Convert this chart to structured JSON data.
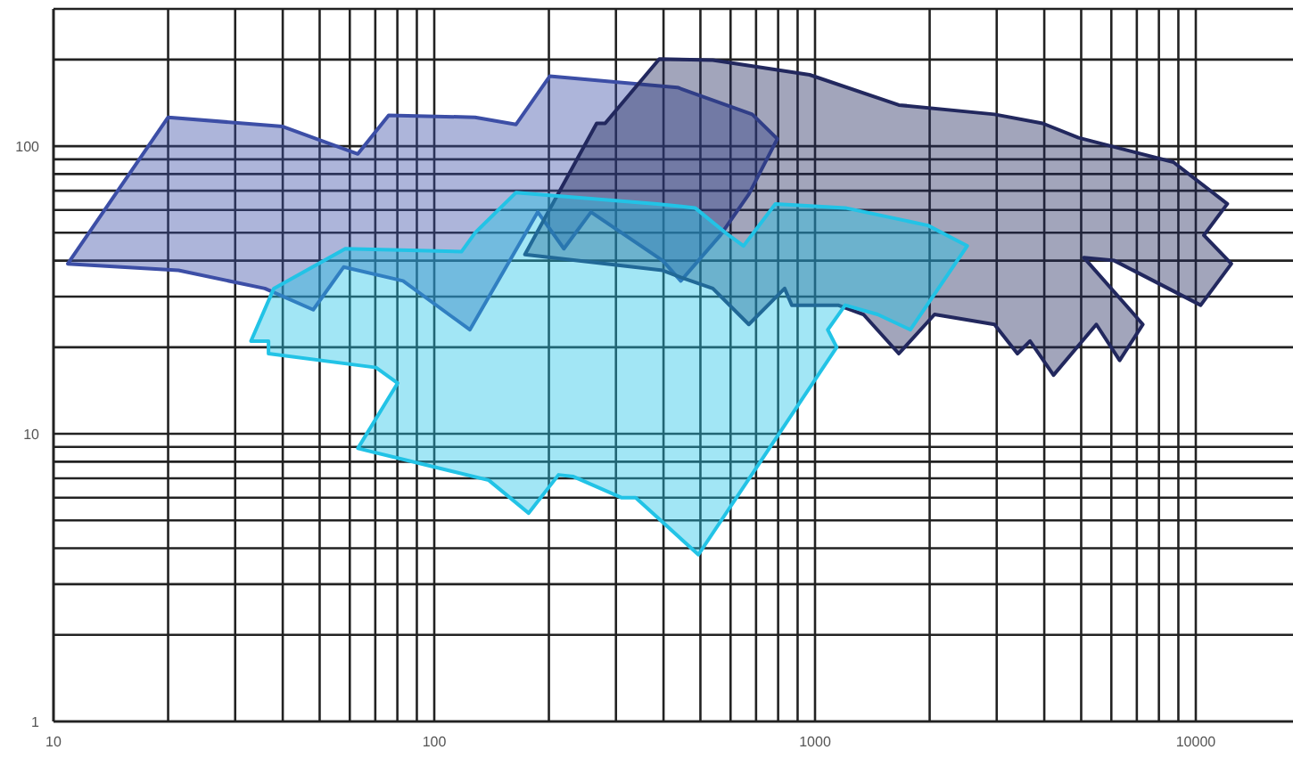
{
  "chart_data": {
    "type": "area",
    "log": "xy",
    "grid": true,
    "xlim": [
      10,
      18000
    ],
    "ylim": [
      1,
      300
    ],
    "xticks": [
      10,
      {
        "value": 20,
        "label": null
      },
      {
        "value": 30,
        "label": null
      },
      {
        "value": 40,
        "label": null
      },
      {
        "value": 50,
        "label": null
      },
      {
        "value": 60,
        "label": null
      },
      {
        "value": 70,
        "label": null
      },
      {
        "value": 80,
        "label": null
      },
      {
        "value": 90,
        "label": null
      },
      100,
      {
        "value": 200,
        "label": null
      },
      {
        "value": 300,
        "label": null
      },
      {
        "value": 400,
        "label": null
      },
      {
        "value": 500,
        "label": null
      },
      {
        "value": 600,
        "label": null
      },
      {
        "value": 700,
        "label": null
      },
      {
        "value": 800,
        "label": null
      },
      {
        "value": 900,
        "label": null
      },
      1000,
      {
        "value": 2000,
        "label": null
      },
      {
        "value": 3000,
        "label": null
      },
      {
        "value": 4000,
        "label": null
      },
      {
        "value": 5000,
        "label": null
      },
      {
        "value": 6000,
        "label": null
      },
      {
        "value": 7000,
        "label": null
      },
      {
        "value": 8000,
        "label": null
      },
      {
        "value": 9000,
        "label": null
      },
      10000
    ],
    "yticks": [
      1,
      {
        "value": 2,
        "label": null
      },
      {
        "value": 3,
        "label": null
      },
      {
        "value": 4,
        "label": null
      },
      {
        "value": 5,
        "label": null
      },
      {
        "value": 6,
        "label": null
      },
      {
        "value": 7,
        "label": null
      },
      {
        "value": 8,
        "label": null
      },
      {
        "value": 9,
        "label": null
      },
      10,
      {
        "value": 20,
        "label": null
      },
      {
        "value": 30,
        "label": null
      },
      {
        "value": 40,
        "label": null
      },
      {
        "value": 50,
        "label": null
      },
      {
        "value": 60,
        "label": null
      },
      {
        "value": 70,
        "label": null
      },
      {
        "value": 80,
        "label": null
      },
      {
        "value": 90,
        "label": null
      },
      100,
      {
        "value": 200,
        "label": null
      }
    ],
    "series": [
      {
        "color": "#3c4ea6",
        "x": [
          10.9,
          20,
          40,
          63,
          75.9,
          128,
          164,
          201,
          435,
          684,
          796,
          670,
          564,
          444,
          398,
          258,
          219,
          187,
          124,
          82.8,
          57.8,
          48.1,
          35.9,
          21.3
        ],
        "values": [
          39,
          126,
          117,
          94,
          128,
          126,
          119,
          175,
          160,
          129,
          106,
          68,
          49,
          34,
          40,
          59,
          44,
          59,
          23,
          34,
          38,
          27,
          32,
          37
        ]
      },
      {
        "color": "#22285e",
        "x": [
          173,
          267,
          281,
          390,
          539,
          968,
          1660,
          2960,
          3960,
          4920,
          8730,
          12100,
          10500,
          12400,
          10300,
          6110,
          5080,
          7260,
          6310,
          5480,
          4230,
          3670,
          3400,
          2960,
          2060,
          1660,
          1340,
          1150,
          869,
          832,
          670,
          539,
          444,
          398
        ],
        "values": [
          42,
          120,
          120,
          201,
          199,
          177,
          139,
          129,
          120,
          107,
          88,
          63,
          49,
          39,
          28,
          40,
          41,
          24,
          18,
          24,
          16,
          21,
          19,
          24,
          26,
          19,
          26,
          28,
          28,
          32,
          24,
          32,
          35,
          37
        ]
      },
      {
        "color": "#22c3e6",
        "x": [
          33,
          37.9,
          58.4,
          118,
          128,
          164,
          385,
          484,
          582,
          649,
          787,
          1200,
          1980,
          2510,
          1780,
          1460,
          1200,
          1080,
          1140,
          494,
          338,
          310,
          232,
          212,
          177,
          139,
          63,
          80.1,
          70.3,
          36.7,
          36.7
        ],
        "values": [
          21,
          32,
          44,
          43,
          50,
          69,
          63,
          61,
          50,
          45,
          63,
          61,
          53,
          45,
          23,
          26,
          28,
          23,
          20,
          3.8,
          6,
          6,
          7.1,
          7.2,
          5.3,
          6.9,
          8.9,
          15,
          17,
          19,
          21
        ]
      }
    ]
  }
}
